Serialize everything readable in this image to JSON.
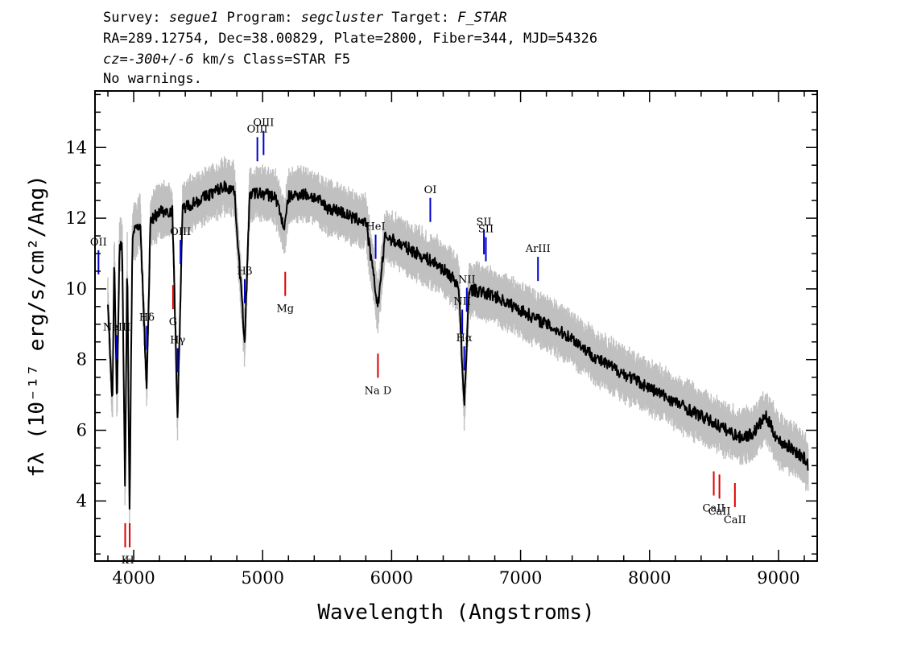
{
  "header": {
    "survey_label": "Survey:",
    "survey": "segue1",
    "program_label": "Program:",
    "program": "segcluster",
    "target_label": "Target:",
    "target": "F_STAR",
    "line2": "RA=289.12754, Dec=38.00829, Plate=2800, Fiber=344, MJD=54326",
    "cz_value": "cz=-300+/-6",
    "cz_rest": " km/s Class=STAR F5",
    "warnings": "No warnings."
  },
  "chart_data": {
    "type": "line",
    "xlabel": "Wavelength (Angstroms)",
    "ylabel": "fλ (10⁻¹⁷ erg/s/cm²/Ang)",
    "xlim": [
      3700,
      9300
    ],
    "ylim": [
      2.3,
      15.6
    ],
    "x_ticks": [
      4000,
      5000,
      6000,
      7000,
      8000,
      9000
    ],
    "y_ticks": [
      4,
      6,
      8,
      10,
      12,
      14
    ],
    "series": [
      {
        "color": "#000000",
        "points": [
          [
            3800,
            9.5
          ],
          [
            3835,
            6.8
          ],
          [
            3850,
            11.0
          ],
          [
            3870,
            6.7
          ],
          [
            3890,
            11.2
          ],
          [
            3910,
            11.4
          ],
          [
            3933,
            4.2
          ],
          [
            3950,
            11.0
          ],
          [
            3968,
            3.7
          ],
          [
            3990,
            11.5
          ],
          [
            4050,
            11.9
          ],
          [
            4101,
            7.2
          ],
          [
            4130,
            11.9
          ],
          [
            4200,
            12.2
          ],
          [
            4300,
            12.2
          ],
          [
            4340,
            6.4
          ],
          [
            4380,
            12.3
          ],
          [
            4500,
            12.5
          ],
          [
            4600,
            12.7
          ],
          [
            4700,
            12.9
          ],
          [
            4780,
            12.8
          ],
          [
            4861,
            8.5
          ],
          [
            4900,
            12.7
          ],
          [
            5000,
            12.7
          ],
          [
            5100,
            12.6
          ],
          [
            5170,
            11.7
          ],
          [
            5200,
            12.6
          ],
          [
            5300,
            12.7
          ],
          [
            5400,
            12.6
          ],
          [
            5500,
            12.3
          ],
          [
            5600,
            12.2
          ],
          [
            5700,
            12.0
          ],
          [
            5800,
            11.9
          ],
          [
            5893,
            9.5
          ],
          [
            5950,
            11.5
          ],
          [
            6050,
            11.3
          ],
          [
            6150,
            11.1
          ],
          [
            6250,
            10.9
          ],
          [
            6350,
            10.7
          ],
          [
            6450,
            10.4
          ],
          [
            6520,
            10.1
          ],
          [
            6563,
            6.6
          ],
          [
            6600,
            10.0
          ],
          [
            6700,
            9.9
          ],
          [
            6800,
            9.8
          ],
          [
            6900,
            9.6
          ],
          [
            7000,
            9.4
          ],
          [
            7100,
            9.2
          ],
          [
            7200,
            9.0
          ],
          [
            7300,
            8.8
          ],
          [
            7400,
            8.6
          ],
          [
            7500,
            8.3
          ],
          [
            7600,
            8.0
          ],
          [
            7700,
            7.8
          ],
          [
            7800,
            7.6
          ],
          [
            7900,
            7.4
          ],
          [
            8000,
            7.2
          ],
          [
            8100,
            7.0
          ],
          [
            8200,
            6.8
          ],
          [
            8300,
            6.6
          ],
          [
            8400,
            6.4
          ],
          [
            8500,
            6.2
          ],
          [
            8600,
            6.0
          ],
          [
            8700,
            5.8
          ],
          [
            8800,
            5.9
          ],
          [
            8900,
            6.4
          ],
          [
            9000,
            5.7
          ],
          [
            9100,
            5.5
          ],
          [
            9200,
            5.2
          ],
          [
            9230,
            5.0
          ]
        ]
      }
    ],
    "emission_lines": [
      {
        "label": "OII",
        "x": 3727
      },
      {
        "label": "NeIII",
        "x": 3869
      },
      {
        "label": "Hδ",
        "x": 4102
      },
      {
        "label": "Hγ",
        "x": 4341
      },
      {
        "label": "OIII",
        "x": 4363
      },
      {
        "label": "Hβ",
        "x": 4861
      },
      {
        "label": "OIII",
        "x": 4959
      },
      {
        "label": "OIII",
        "x": 5007
      },
      {
        "label": "HeI",
        "x": 5876
      },
      {
        "label": "OI",
        "x": 6300
      },
      {
        "label": "NII",
        "x": 6548
      },
      {
        "label": "Hα",
        "x": 6563
      },
      {
        "label": "NII",
        "x": 6583
      },
      {
        "label": "SII",
        "x": 6716
      },
      {
        "label": "SII",
        "x": 6731
      },
      {
        "label": "ArIII",
        "x": 7135
      }
    ],
    "absorption_lines": [
      {
        "label": "K",
        "x": 3934
      },
      {
        "label": "H",
        "x": 3969
      },
      {
        "label": "G",
        "x": 4305
      },
      {
        "label": "Mg",
        "x": 5175
      },
      {
        "label": "Na D",
        "x": 5894
      },
      {
        "label": "CaII",
        "x": 8498
      },
      {
        "label": "CaII",
        "x": 8542
      },
      {
        "label": "CaII",
        "x": 8662
      }
    ],
    "colors": {
      "spectrum": "#000000",
      "noise": "#c0c0c0",
      "emission": "#0000cc",
      "absorption": "#dd0000"
    }
  }
}
